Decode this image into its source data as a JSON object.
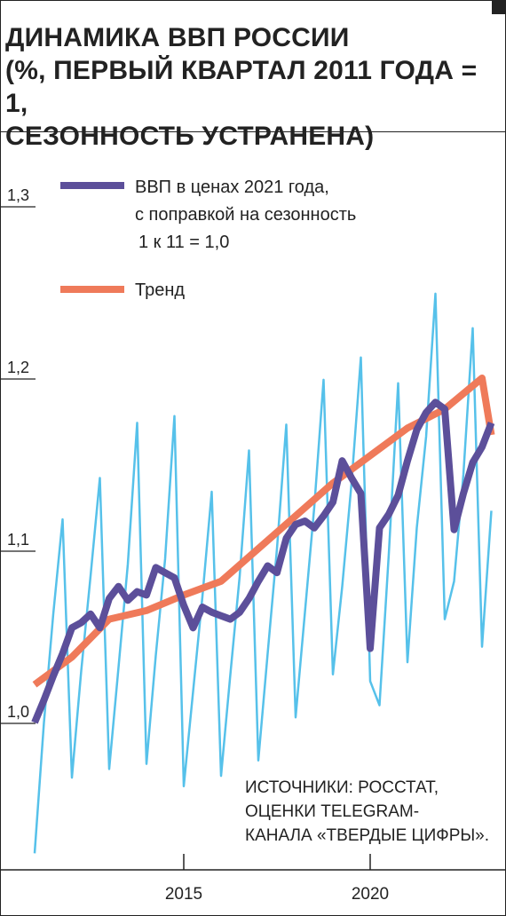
{
  "title_lines": [
    "ДИНАМИКА ВВП РОССИИ",
    "(%, ПЕРВЫЙ КВАРТАЛ 2011 ГОДА = 1,",
    "СЕЗОННОСТЬ УСТРАНЕНА)"
  ],
  "legend": {
    "gdp_lines": [
      "ВВП в ценах 2021 года,",
      "с поправкой на сезонность",
      "1 к 11 = 1,0"
    ],
    "trend": "Тренд"
  },
  "source_lines": [
    "ИСТОЧНИКИ: РОССТАТ,",
    "ОЦЕНКИ TELEGRAM-",
    "КАНАЛА «ТВЕРДЫЕ ЦИФРЫ»."
  ],
  "colors": {
    "gdp_sa": "#5c4f9a",
    "trend": "#ef7a5a",
    "gdp_raw": "#56c1ea",
    "axis": "#222222"
  },
  "chart_data": {
    "type": "line",
    "title": "ДИНАМИКА ВВП РОССИИ (%, ПЕРВЫЙ КВАРТАЛ 2011 ГОДА = 1, СЕЗОННОСТЬ УСТРАНЕНА)",
    "y_ticks": [
      "1,0",
      "1,1",
      "1,2",
      "1,3"
    ],
    "y_tick_values": [
      1.0,
      1.1,
      1.2,
      1.3
    ],
    "x_ticks": [
      "2015",
      "2020"
    ],
    "x_tick_values": [
      2015,
      2020
    ],
    "ylim": [
      0.915,
      1.34
    ],
    "xlim": [
      2010.95,
      2024.05
    ],
    "grid": false,
    "legend_position": "top-left",
    "series": [
      {
        "name": "ВВП в ценах 2021 года, с поправкой на сезонность 1 к 11 = 1,0",
        "color": "#5c4f9a",
        "x": [
          2011.0,
          2011.25,
          2011.5,
          2011.75,
          2012.0,
          2012.25,
          2012.5,
          2012.75,
          2013.0,
          2013.25,
          2013.5,
          2013.75,
          2014.0,
          2014.25,
          2014.5,
          2014.75,
          2015.0,
          2015.25,
          2015.5,
          2015.75,
          2016.0,
          2016.25,
          2016.5,
          2016.75,
          2017.0,
          2017.25,
          2017.5,
          2017.75,
          2018.0,
          2018.25,
          2018.5,
          2018.75,
          2019.0,
          2019.25,
          2019.5,
          2019.75,
          2020.0,
          2020.25,
          2020.5,
          2020.75,
          2021.0,
          2021.25,
          2021.5,
          2021.75,
          2022.0,
          2022.25,
          2022.5,
          2022.75,
          2023.0,
          2023.25
        ],
        "values": [
          1.0,
          1.013,
          1.027,
          1.04,
          1.055,
          1.058,
          1.063,
          1.055,
          1.072,
          1.079,
          1.071,
          1.076,
          1.074,
          1.09,
          1.087,
          1.084,
          1.068,
          1.055,
          1.067,
          1.064,
          1.062,
          1.06,
          1.064,
          1.072,
          1.082,
          1.091,
          1.087,
          1.107,
          1.115,
          1.117,
          1.113,
          1.12,
          1.128,
          1.152,
          1.142,
          1.133,
          1.043,
          1.113,
          1.121,
          1.132,
          1.152,
          1.17,
          1.18,
          1.186,
          1.182,
          1.112,
          1.133,
          1.151,
          1.16,
          1.174
        ]
      },
      {
        "name": "Тренд",
        "color": "#ef7a5a",
        "x": [
          2011.0,
          2012.0,
          2013.0,
          2014.0,
          2015.0,
          2016.0,
          2017.0,
          2018.0,
          2019.0,
          2020.0,
          2021.0,
          2022.0,
          2023.0,
          2023.25
        ],
        "values": [
          1.022,
          1.038,
          1.06,
          1.065,
          1.074,
          1.082,
          1.101,
          1.12,
          1.139,
          1.155,
          1.171,
          1.182,
          1.2,
          1.167
        ]
      },
      {
        "color": "#56c1ea",
        "x": [
          2011.0,
          2011.25,
          2011.5,
          2011.75,
          2012.0,
          2012.25,
          2012.5,
          2012.75,
          2013.0,
          2013.25,
          2013.5,
          2013.75,
          2014.0,
          2014.25,
          2014.5,
          2014.75,
          2015.0,
          2015.25,
          2015.5,
          2015.75,
          2016.0,
          2016.25,
          2016.5,
          2016.75,
          2017.0,
          2017.25,
          2017.5,
          2017.75,
          2018.0,
          2018.25,
          2018.5,
          2018.75,
          2019.0,
          2019.25,
          2019.5,
          2019.75,
          2020.0,
          2020.25,
          2020.5,
          2020.75,
          2021.0,
          2021.25,
          2021.5,
          2021.75,
          2022.0,
          2022.25,
          2022.5,
          2022.75,
          2023.0,
          2023.25
        ],
        "values": [
          0.924,
          1.0,
          1.063,
          1.118,
          0.968,
          1.03,
          1.085,
          1.142,
          0.973,
          1.032,
          1.092,
          1.174,
          0.976,
          1.039,
          1.095,
          1.178,
          0.963,
          1.018,
          1.073,
          1.134,
          0.969,
          1.028,
          1.085,
          1.158,
          0.978,
          1.04,
          1.101,
          1.173,
          1.003,
          1.064,
          1.125,
          1.199,
          1.028,
          1.079,
          1.139,
          1.212,
          1.024,
          1.01,
          1.098,
          1.197,
          1.035,
          1.113,
          1.166,
          1.249,
          1.06,
          1.082,
          1.144,
          1.229,
          1.044,
          1.123
        ]
      }
    ]
  }
}
